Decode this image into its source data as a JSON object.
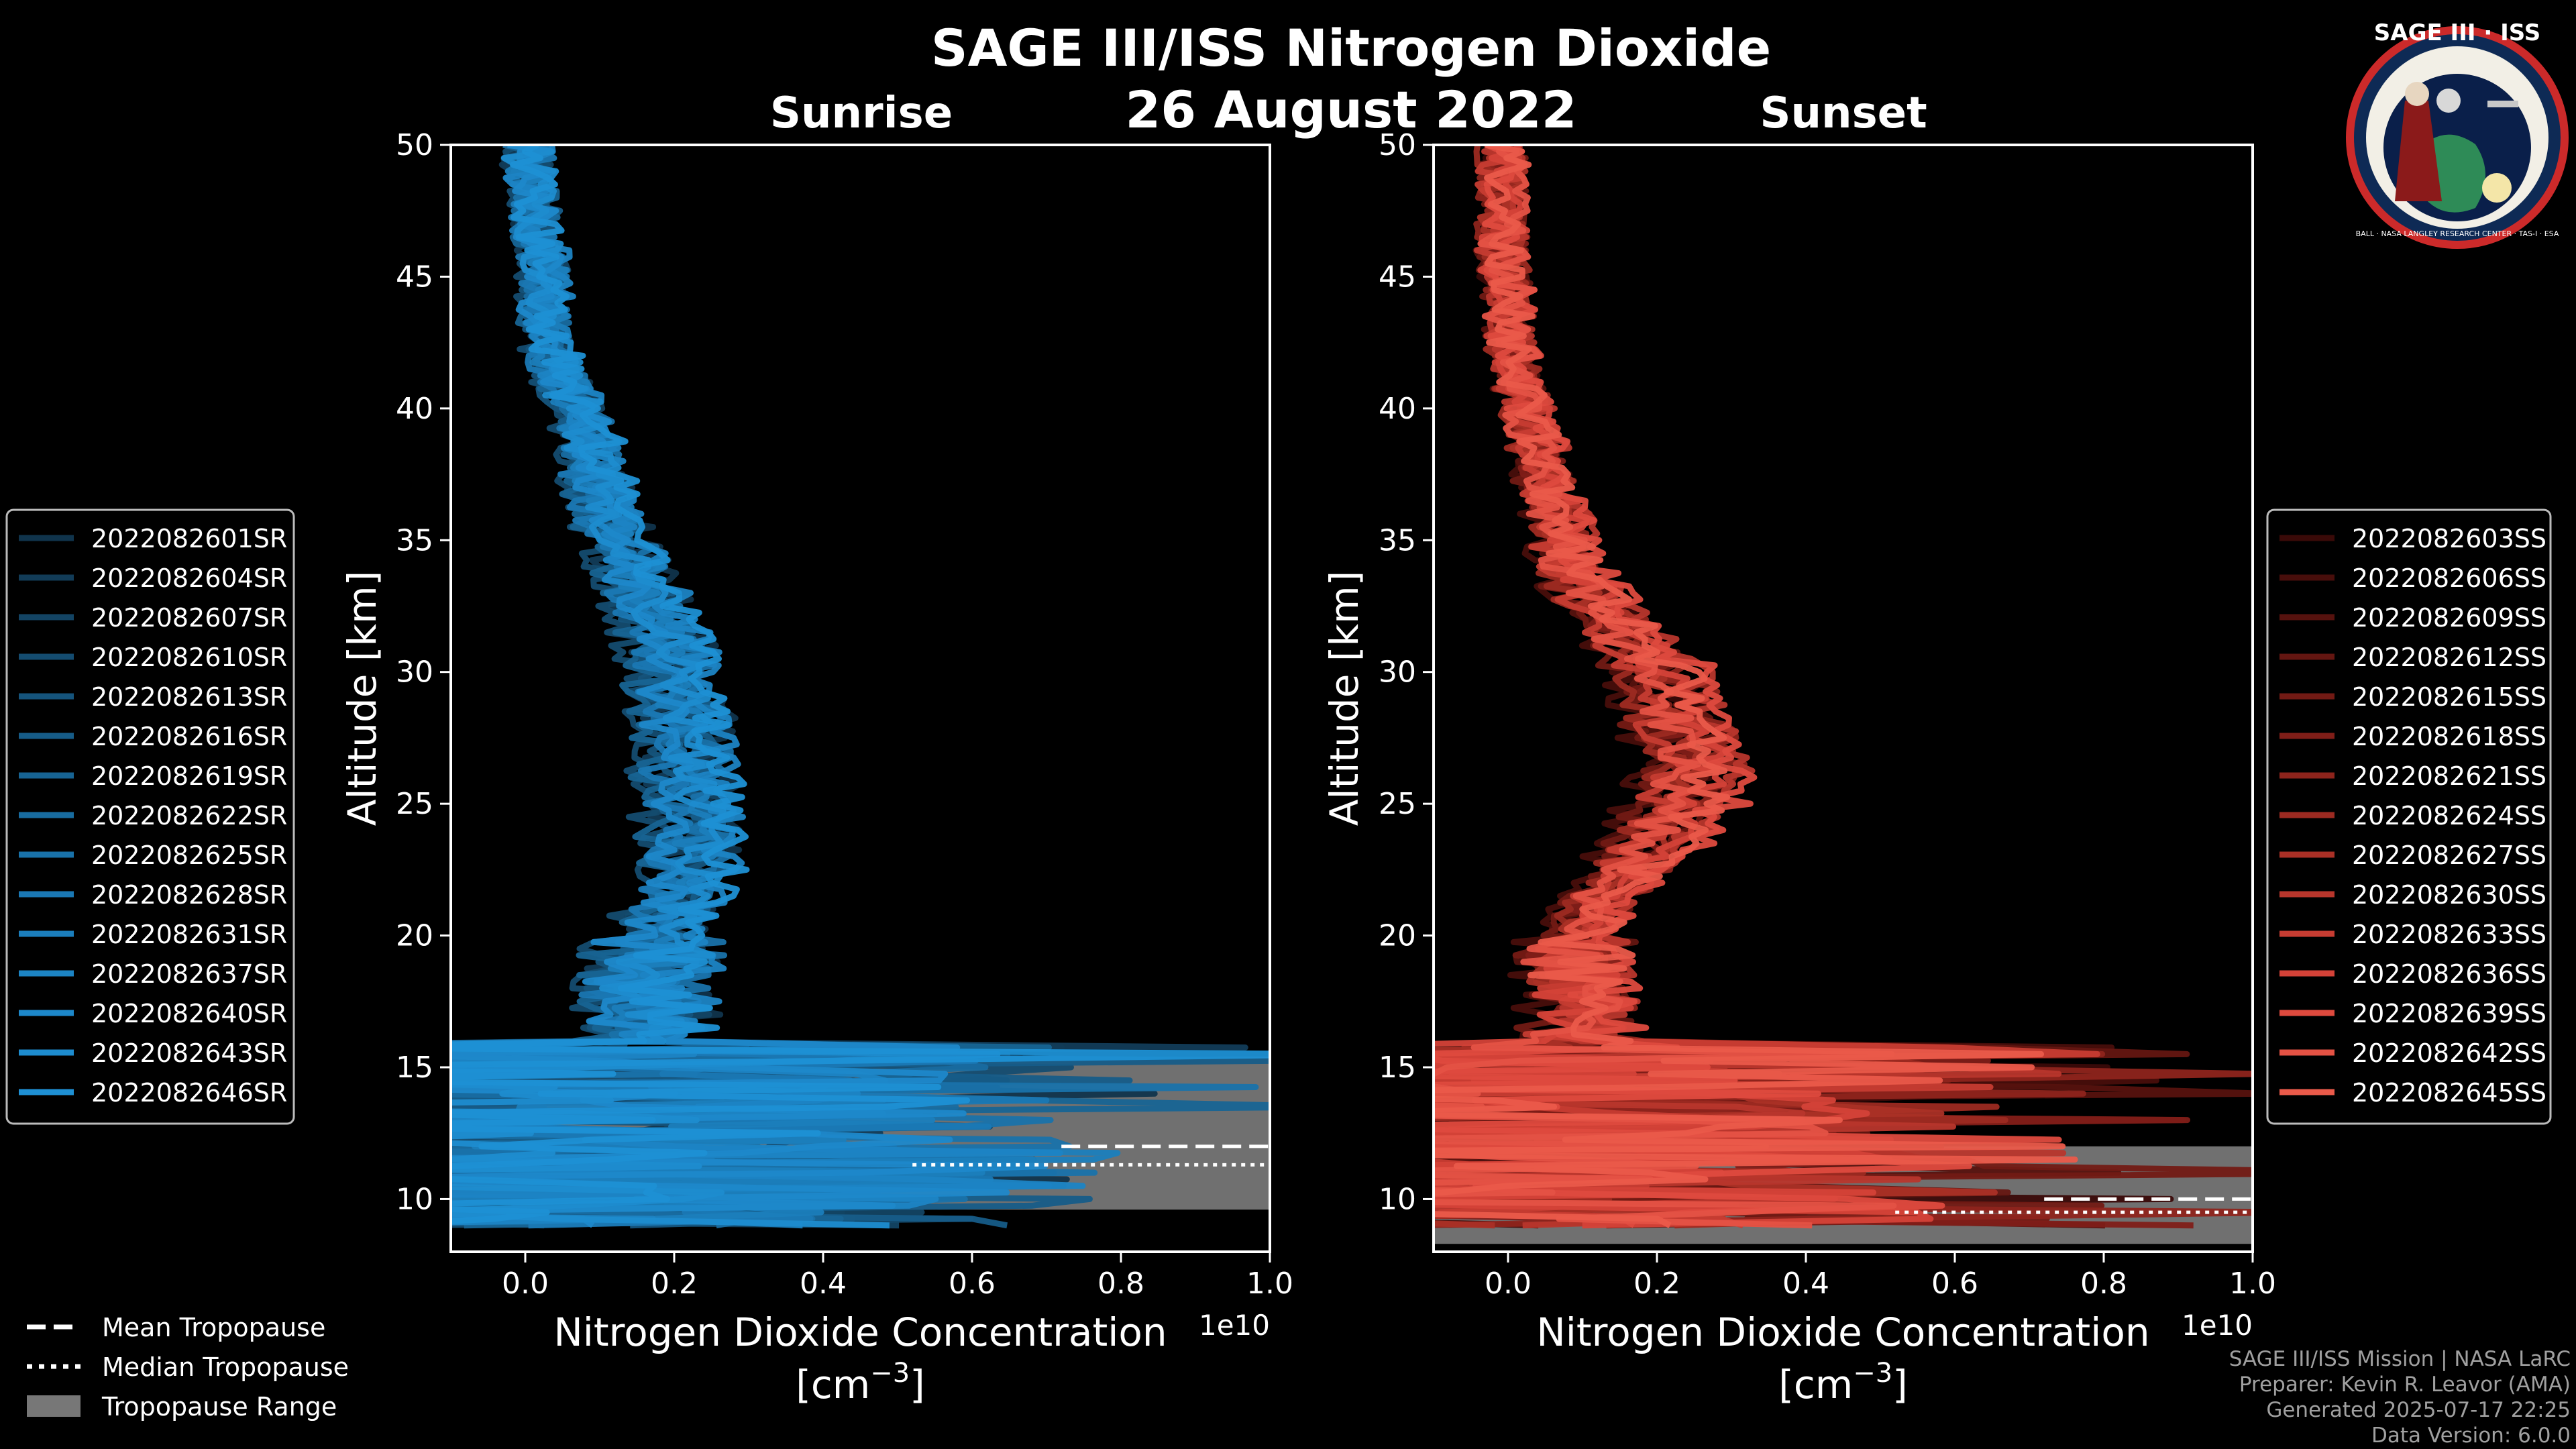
{
  "header": {
    "title": "SAGE III/ISS Nitrogen Dioxide",
    "date": "26 August 2022"
  },
  "logo": {
    "text": "SAGE III · ISS",
    "ring_text": "BALL · NASA LANGLEY RESEARCH CENTER · TAS-I · ESA"
  },
  "footer": {
    "line1": "SAGE III/ISS Mission | NASA LaRC",
    "line2": "Preparer: Kevin R. Leavor (AMA)",
    "line3": "Generated 2025-07-17 22:25",
    "line4": "Data Version: 6.0.0"
  },
  "tropopause_legend": {
    "mean": "Mean Tropopause",
    "median": "Median Tropopause",
    "range": "Tropopause Range"
  },
  "chart_data": [
    {
      "type": "line",
      "title": "Sunrise",
      "xlabel": "Nitrogen Dioxide Concentration",
      "xunit": "[cm",
      "xunit_exp": "−3",
      "xunit_close": "]",
      "ylabel": "Altitude [km]",
      "x_scale_label": "1e10",
      "xlim": [
        -0.1,
        1.0
      ],
      "ylim": [
        8,
        50
      ],
      "xticks": [
        0.0,
        0.2,
        0.4,
        0.6,
        0.8,
        1.0
      ],
      "xtick_labels": [
        "0.0",
        "0.2",
        "0.4",
        "0.6",
        "0.8",
        "1.0"
      ],
      "yticks": [
        10,
        15,
        20,
        25,
        30,
        35,
        40,
        45,
        50
      ],
      "ytick_labels": [
        "10",
        "15",
        "20",
        "25",
        "30",
        "35",
        "40",
        "45",
        "50"
      ],
      "series_color": "#1c8cd0",
      "tropopause_range": [
        9.6,
        15.4
      ],
      "tropopause_mean": 12.0,
      "tropopause_median": 11.3,
      "profile": {
        "altitude": [
          9,
          10,
          11,
          12,
          13,
          14,
          15,
          16,
          17,
          18,
          19,
          20,
          21,
          22,
          23,
          24,
          25,
          26,
          27,
          28,
          29,
          30,
          31,
          32,
          33,
          34,
          35,
          36,
          37,
          38,
          39,
          40,
          41,
          42,
          43,
          44,
          45,
          46,
          47,
          48,
          49,
          50
        ],
        "no2": [
          0.06,
          0.08,
          0.07,
          0.06,
          0.08,
          0.1,
          0.12,
          0.14,
          0.15,
          0.14,
          0.15,
          0.16,
          0.17,
          0.19,
          0.2,
          0.2,
          0.2,
          0.19,
          0.19,
          0.19,
          0.18,
          0.18,
          0.17,
          0.15,
          0.14,
          0.12,
          0.11,
          0.1,
          0.09,
          0.08,
          0.07,
          0.06,
          0.04,
          0.03,
          0.02,
          0.02,
          0.02,
          0.015,
          0.01,
          0.005,
          0.0,
          0.0
        ]
      },
      "series": [
        {
          "name": "2022082601SR",
          "color": "#10344c"
        },
        {
          "name": "2022082604SR",
          "color": "#123c58"
        },
        {
          "name": "2022082607SR",
          "color": "#134464"
        },
        {
          "name": "2022082610SR",
          "color": "#144c70"
        },
        {
          "name": "2022082613SR",
          "color": "#15547c"
        },
        {
          "name": "2022082616SR",
          "color": "#165c88"
        },
        {
          "name": "2022082619SR",
          "color": "#176494"
        },
        {
          "name": "2022082622SR",
          "color": "#186ca0"
        },
        {
          "name": "2022082625SR",
          "color": "#1972aa"
        },
        {
          "name": "2022082628SR",
          "color": "#1a78b4"
        },
        {
          "name": "2022082631SR",
          "color": "#1b7ebc"
        },
        {
          "name": "2022082637SR",
          "color": "#1c84c4"
        },
        {
          "name": "2022082640SR",
          "color": "#1d88ca"
        },
        {
          "name": "2022082643SR",
          "color": "#1d8ccf"
        },
        {
          "name": "2022082646SR",
          "color": "#1e90d4"
        }
      ]
    },
    {
      "type": "line",
      "title": "Sunset",
      "xlabel": "Nitrogen Dioxide Concentration",
      "xunit": "[cm",
      "xunit_exp": "−3",
      "xunit_close": "]",
      "ylabel": "Altitude [km]",
      "x_scale_label": "1e10",
      "xlim": [
        -0.1,
        1.0
      ],
      "ylim": [
        8,
        50
      ],
      "xticks": [
        0.0,
        0.2,
        0.4,
        0.6,
        0.8,
        1.0
      ],
      "xtick_labels": [
        "0.0",
        "0.2",
        "0.4",
        "0.6",
        "0.8",
        "1.0"
      ],
      "yticks": [
        10,
        15,
        20,
        25,
        30,
        35,
        40,
        45,
        50
      ],
      "ytick_labels": [
        "10",
        "15",
        "20",
        "25",
        "30",
        "35",
        "40",
        "45",
        "50"
      ],
      "series_color": "#e8584a",
      "tropopause_range": [
        8.3,
        12.0
      ],
      "tropopause_mean": 10.0,
      "tropopause_median": 9.5,
      "profile": {
        "altitude": [
          9,
          10,
          11,
          12,
          13,
          14,
          15,
          16,
          17,
          18,
          19,
          20,
          21,
          22,
          23,
          24,
          25,
          26,
          27,
          28,
          29,
          30,
          31,
          32,
          33,
          34,
          35,
          36,
          37,
          38,
          39,
          40,
          41,
          42,
          43,
          44,
          45,
          46,
          47,
          48,
          49,
          50
        ],
        "no2": [
          0.1,
          0.12,
          0.11,
          0.1,
          0.11,
          0.12,
          0.13,
          0.12,
          0.11,
          0.1,
          0.1,
          0.11,
          0.13,
          0.16,
          0.19,
          0.22,
          0.24,
          0.25,
          0.25,
          0.24,
          0.23,
          0.21,
          0.18,
          0.15,
          0.12,
          0.1,
          0.08,
          0.07,
          0.06,
          0.05,
          0.04,
          0.03,
          0.02,
          0.015,
          0.01,
          0.01,
          0.005,
          0.0,
          0.0,
          0.0,
          0.0,
          0.0
        ]
      },
      "series": [
        {
          "name": "2022082603SS",
          "color": "#3a0a08"
        },
        {
          "name": "2022082606SS",
          "color": "#480e0b"
        },
        {
          "name": "2022082609SS",
          "color": "#56120e"
        },
        {
          "name": "2022082612SS",
          "color": "#641611"
        },
        {
          "name": "2022082615SS",
          "color": "#721a14"
        },
        {
          "name": "2022082618SS",
          "color": "#801e18"
        },
        {
          "name": "2022082621SS",
          "color": "#8e241c"
        },
        {
          "name": "2022082624SS",
          "color": "#9c2a21"
        },
        {
          "name": "2022082627SS",
          "color": "#aa3026"
        },
        {
          "name": "2022082630SS",
          "color": "#b8362c"
        },
        {
          "name": "2022082633SS",
          "color": "#c63c32"
        },
        {
          "name": "2022082636SS",
          "color": "#d44238"
        },
        {
          "name": "2022082639SS",
          "color": "#de4a3e"
        },
        {
          "name": "2022082642SS",
          "color": "#e45244"
        },
        {
          "name": "2022082645SS",
          "color": "#ea5a4a"
        }
      ]
    }
  ]
}
